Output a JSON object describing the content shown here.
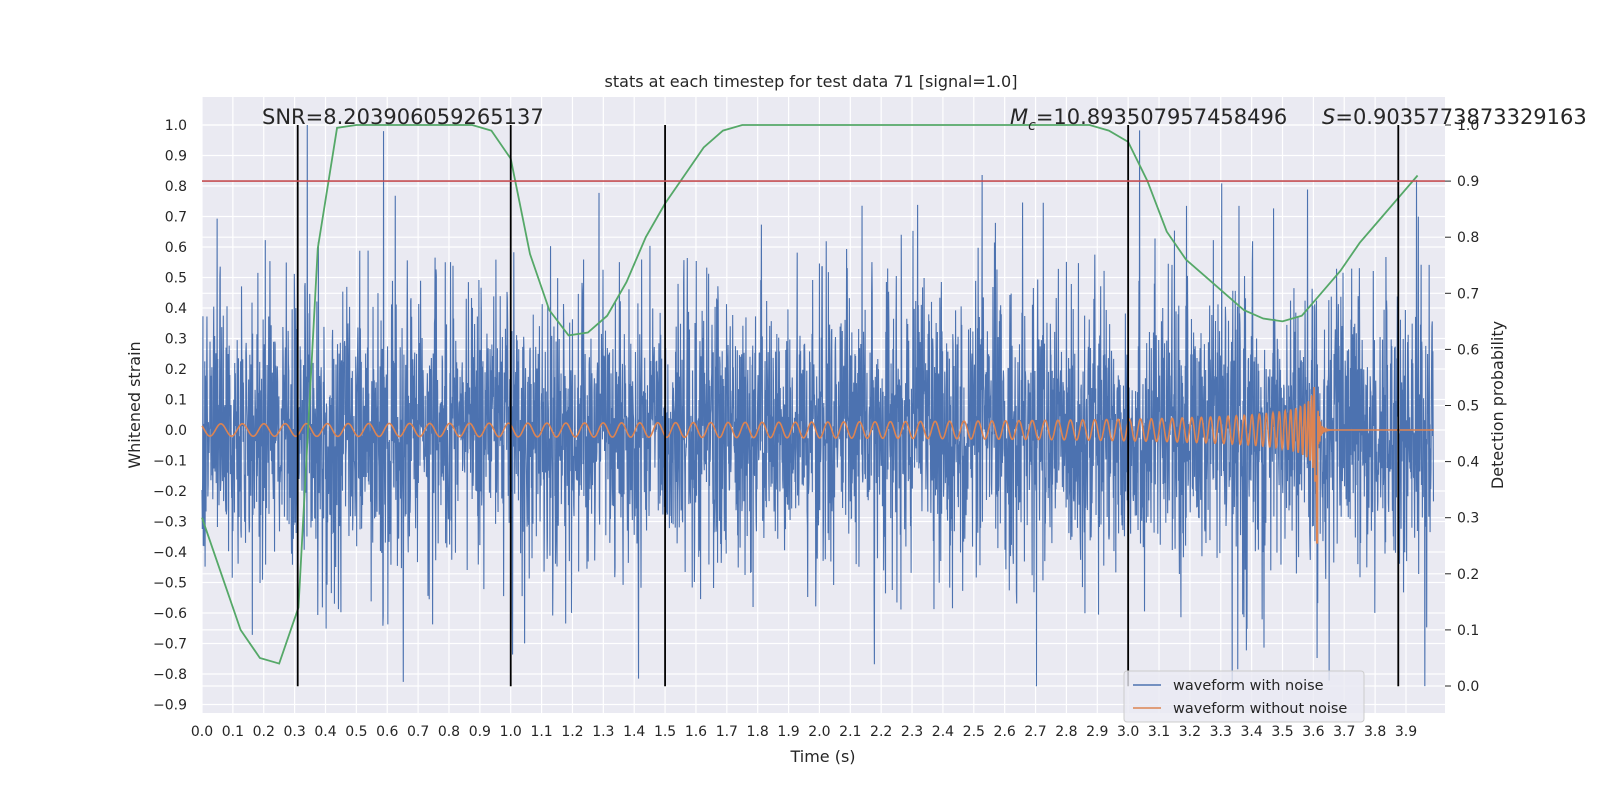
{
  "chart_data": {
    "type": "line",
    "title": "stats at each timestep for test data 71 [signal=1.0]",
    "xlabel": "Time (s)",
    "ylabel": "Whitened strain",
    "ylabel_right": "Detection probability",
    "xlim": [
      0.0,
      3.99
    ],
    "ylim": [
      -0.93,
      1.09
    ],
    "ylim_right": [
      -0.05,
      1.05
    ],
    "x_ticks": [
      "0.0",
      "0.1",
      "0.2",
      "0.3",
      "0.4",
      "0.5",
      "0.6",
      "0.7",
      "0.8",
      "0.9",
      "1.0",
      "1.1",
      "1.2",
      "1.3",
      "1.4",
      "1.5",
      "1.6",
      "1.7",
      "1.8",
      "1.9",
      "2.0",
      "2.1",
      "2.2",
      "2.3",
      "2.4",
      "2.5",
      "2.6",
      "2.7",
      "2.8",
      "2.9",
      "3.0",
      "3.1",
      "3.2",
      "3.3",
      "3.4",
      "3.5",
      "3.6",
      "3.7",
      "3.8",
      "3.9"
    ],
    "y_ticks": [
      "1.0",
      "0.9",
      "0.8",
      "0.7",
      "0.6",
      "0.5",
      "0.4",
      "0.3",
      "0.2",
      "0.1",
      "0.0",
      "−0.1",
      "−0.2",
      "−0.3",
      "−0.4",
      "−0.5",
      "−0.6",
      "−0.7",
      "−0.8",
      "−0.9"
    ],
    "y_ticks_right": [
      "1.0",
      "0.9",
      "0.8",
      "0.7",
      "0.6",
      "0.5",
      "0.4",
      "0.3",
      "0.2",
      "0.1",
      "0.0"
    ],
    "annotations": {
      "snr": "SNR=8.203906059265137",
      "mc_symbol": "M",
      "mc_sub": "c",
      "mc_value": "=10.893507957458496",
      "s_symbol": "S",
      "s_value": "=0.9035773873329163"
    },
    "legend": {
      "position": "lower-right",
      "items": [
        {
          "label": "waveform with noise",
          "color": "#4c72b0"
        },
        {
          "label": "waveform without noise",
          "color": "#dd8452"
        }
      ]
    },
    "threshold_line": {
      "y": 0.9,
      "axis": "right",
      "color": "#c44e52"
    },
    "vertical_lines": [
      0.31,
      1.0,
      1.5,
      3.0,
      3.875
    ],
    "vertical_line_range": [
      -0.84,
      1.0
    ],
    "probability_series": {
      "name": "detection probability",
      "color": "#55a868",
      "x": [
        0.0,
        0.0625,
        0.125,
        0.1875,
        0.25,
        0.3125,
        0.375,
        0.4375,
        0.5,
        0.5625,
        0.625,
        0.6875,
        0.75,
        0.8125,
        0.875,
        0.9375,
        1.0,
        1.0625,
        1.125,
        1.1875,
        1.25,
        1.3125,
        1.375,
        1.4375,
        1.5,
        1.5625,
        1.625,
        1.6875,
        1.75,
        1.8125,
        1.875,
        1.9375,
        2.0,
        2.0625,
        2.125,
        2.1875,
        2.25,
        2.3125,
        2.375,
        2.4375,
        2.5,
        2.5625,
        2.625,
        2.6875,
        2.75,
        2.8125,
        2.875,
        2.9375,
        3.0,
        3.0625,
        3.125,
        3.1875,
        3.25,
        3.3125,
        3.375,
        3.4375,
        3.5,
        3.5625,
        3.625,
        3.6875,
        3.75,
        3.8125,
        3.875,
        3.9375
      ],
      "values": [
        0.3,
        0.2,
        0.1,
        0.05,
        0.04,
        0.14,
        0.78,
        0.995,
        1.0,
        1.0,
        1.0,
        1.0,
        1.0,
        1.0,
        1.0,
        0.99,
        0.94,
        0.77,
        0.67,
        0.625,
        0.63,
        0.66,
        0.72,
        0.8,
        0.86,
        0.91,
        0.96,
        0.99,
        1.0,
        1.0,
        1.0,
        1.0,
        1.0,
        1.0,
        1.0,
        1.0,
        1.0,
        1.0,
        1.0,
        1.0,
        1.0,
        1.0,
        1.0,
        1.0,
        1.0,
        1.0,
        1.0,
        0.99,
        0.97,
        0.9,
        0.81,
        0.76,
        0.73,
        0.7,
        0.67,
        0.655,
        0.65,
        0.66,
        0.7,
        0.74,
        0.79,
        0.83,
        0.87,
        0.91
      ]
    },
    "series": [
      {
        "name": "waveform with noise",
        "color": "#4c72b0",
        "sample_rate_hz": 1000,
        "amplitude_range": [
          -0.84,
          1.0
        ]
      },
      {
        "name": "waveform without noise",
        "color": "#dd8452",
        "baseline_amplitude": 0.02,
        "peak_amplitude": 0.25,
        "min_amplitude": -0.37,
        "merger_time": 3.61
      }
    ]
  }
}
